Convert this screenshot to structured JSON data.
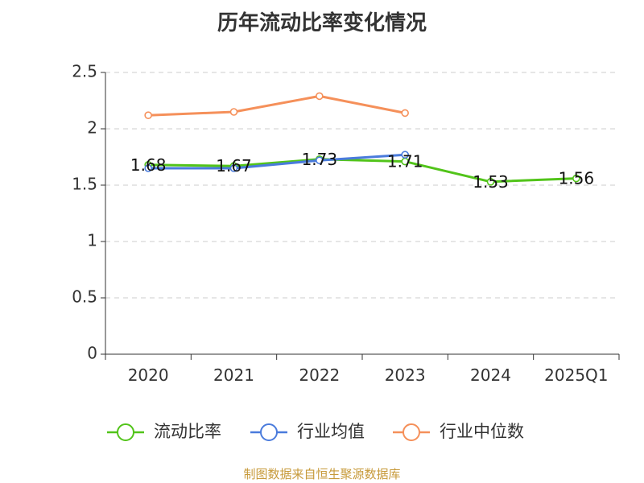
{
  "page_title": "历年流动比率变化情况",
  "source": "制图数据来自恒生聚源数据库",
  "colors": {
    "current_ratio": "#52c41a",
    "industry_avg": "#4a7bdc",
    "industry_median": "#f5905a",
    "grid": "#cccccc",
    "axis": "#333333"
  },
  "chart_data": {
    "type": "line",
    "title": "历年流动比率变化情况",
    "categories": [
      "2020",
      "2021",
      "2022",
      "2023",
      "2024",
      "2025Q1"
    ],
    "ylim": [
      0,
      2.5
    ],
    "yticks": [
      "0",
      "0.5",
      "1",
      "1.5",
      "2",
      "2.5"
    ],
    "grid": true,
    "legend_position": "bottom",
    "series": [
      {
        "name": "流动比率",
        "key": "current_ratio",
        "values": [
          1.68,
          1.67,
          1.73,
          1.71,
          1.53,
          1.56
        ],
        "labels": [
          "1.68",
          "1.67",
          "1.73",
          "1.71",
          "1.53",
          "1.56"
        ]
      },
      {
        "name": "行业均值",
        "key": "industry_avg",
        "values": [
          1.65,
          1.65,
          1.72,
          1.77,
          null,
          null
        ]
      },
      {
        "name": "行业中位数",
        "key": "industry_median",
        "values": [
          2.12,
          2.15,
          2.29,
          2.14,
          null,
          null
        ]
      }
    ]
  }
}
